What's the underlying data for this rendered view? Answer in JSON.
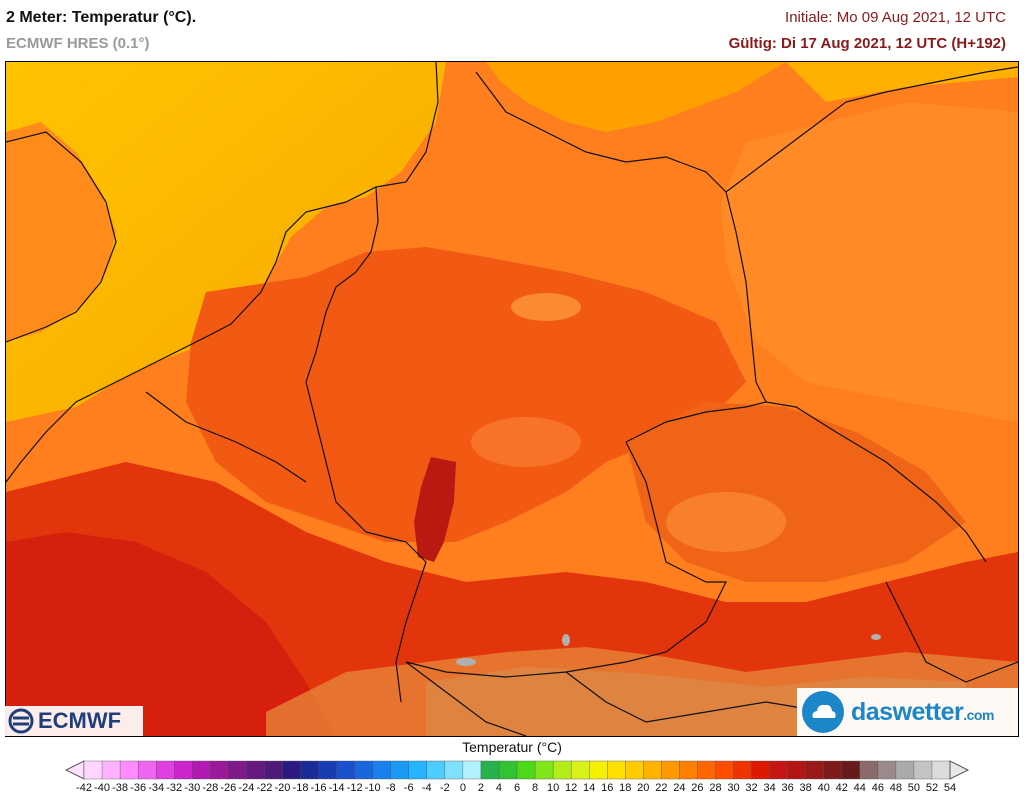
{
  "header": {
    "title": "2 Meter: Temperatur (°C).",
    "model": "ECMWF HRES (0.1°)",
    "initial": "Initiale: Mo 09 Aug 2021, 12 UTC",
    "valid": "Gültig: Di 17 Aug 2021, 12 UTC (H+192)"
  },
  "logos": {
    "ecmwf": "ECMWF",
    "daswetter_main": "daswetter",
    "daswetter_tld": ".com"
  },
  "colorbar": {
    "title": "Temperatur (°C)",
    "ticks": [
      "-42",
      "-40",
      "-38",
      "-36",
      "-34",
      "-32",
      "-30",
      "-28",
      "-26",
      "-24",
      "-22",
      "-20",
      "-18",
      "-16",
      "-14",
      "-12",
      "-10",
      "-8",
      "-6",
      "-4",
      "-2",
      "0",
      "2",
      "4",
      "6",
      "8",
      "10",
      "12",
      "14",
      "16",
      "18",
      "20",
      "22",
      "24",
      "26",
      "28",
      "30",
      "32",
      "34",
      "36",
      "38",
      "40",
      "42",
      "44",
      "46",
      "48",
      "50",
      "52",
      "54"
    ],
    "colors": [
      "#ffd6ff",
      "#ffb2ff",
      "#ff8cff",
      "#f065f0",
      "#e040e0",
      "#cc26cc",
      "#b31ab3",
      "#9a1a9a",
      "#7f1a8a",
      "#661a80",
      "#4d1a7a",
      "#2a1a80",
      "#1a2a99",
      "#1a3cb3",
      "#1a50cc",
      "#1a66dd",
      "#1a80ee",
      "#1a99f5",
      "#26b3ff",
      "#4dccff",
      "#80e0ff",
      "#b3f0ff",
      "#26b34d",
      "#33c233",
      "#4dd91a",
      "#80e61a",
      "#b3ee1a",
      "#d9f21a",
      "#f5f000",
      "#ffe000",
      "#ffcc00",
      "#ffb300",
      "#ff9900",
      "#ff7f00",
      "#ff6600",
      "#ff4d00",
      "#ee3300",
      "#dd1a00",
      "#c71414",
      "#b31414",
      "#9a1a1a",
      "#7f1a1a",
      "#661a1a",
      "#8a6a6a",
      "#9a8a8a",
      "#aaaaaa",
      "#c3c3c3",
      "#dcdcdc"
    ],
    "left_arrow_color": "#ffe0ff",
    "right_arrow_color": "#e8e8e8"
  },
  "map_colors": {
    "cool": "#f7b200",
    "warm_orange": "#ff7a1a",
    "hot": "#f04a12",
    "very_hot": "#dc2a0a",
    "extreme": "#bb1a12",
    "alpine": "#d8a060",
    "borders": "#111111"
  }
}
